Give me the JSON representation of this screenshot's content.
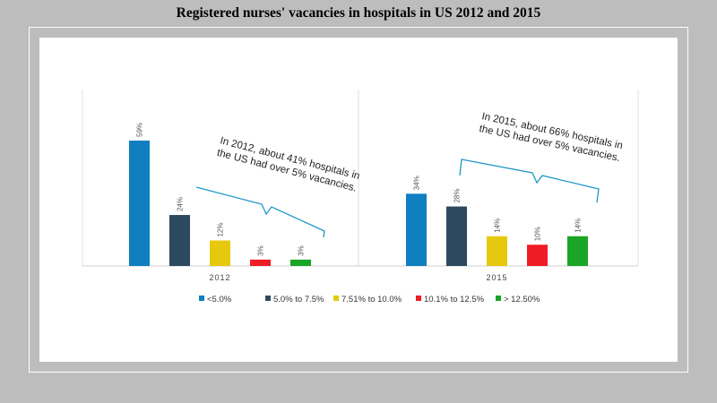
{
  "title": "Registered nurses' vacancies in hospitals in US 2012 and 2015",
  "chart_data": {
    "type": "bar",
    "title": "Registered nurses' vacancies in hospitals in US 2012 and 2015",
    "categories": [
      "2012",
      "2015"
    ],
    "series": [
      {
        "name": "<5.0%",
        "color": "#0f7fbf",
        "values": [
          59,
          34
        ],
        "labels": [
          "59%",
          "34%"
        ]
      },
      {
        "name": "5.0% to 7.5%",
        "color": "#2b4a60",
        "values": [
          24,
          28
        ],
        "labels": [
          "24%",
          "28%"
        ]
      },
      {
        "name": "7.51% to 10.0%",
        "color": "#e6c90f",
        "values": [
          12,
          14
        ],
        "labels": [
          "12%",
          "14%"
        ]
      },
      {
        "name": "10.1% to 12.5%",
        "color": "#ee1c24",
        "values": [
          3,
          10
        ],
        "labels": [
          "3%",
          "10%"
        ]
      },
      {
        "name": "> 12.50%",
        "color": "#1aa526",
        "values": [
          3,
          14
        ],
        "labels": [
          "3%",
          "14%"
        ]
      }
    ],
    "annotations": [
      {
        "group": "2012",
        "lines": [
          "In 2012, about 41% hospitals in",
          "the US had over 5% vacancies."
        ]
      },
      {
        "group": "2015",
        "lines": [
          "In 2015, about 66% hospitals in",
          "the US had over 5% vacancies."
        ]
      }
    ],
    "legend_position": "bottom",
    "grid": false
  }
}
